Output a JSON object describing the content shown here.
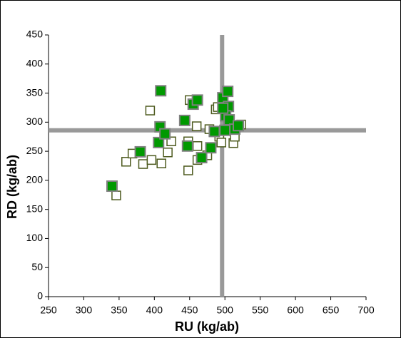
{
  "chart_data": {
    "type": "scatter",
    "x_label": "RU (kg/ab)",
    "y_label": "RD (kg/ab)",
    "xlim": [
      250,
      700
    ],
    "xticks": [
      250,
      300,
      350,
      400,
      450,
      500,
      550,
      600,
      650,
      700
    ],
    "ylim": [
      0,
      450
    ],
    "yticks": [
      0,
      50,
      100,
      150,
      200,
      250,
      300,
      350,
      400,
      450
    ],
    "reference_lines": {
      "x": 496,
      "y": 286,
      "color": "#999999"
    },
    "series": [
      {
        "color": "#4d5a1e",
        "marker": "hollow-square",
        "x": [
          346,
          360,
          369,
          384,
          396,
          410,
          394,
          419,
          424,
          448,
          448,
          461,
          460,
          461,
          475,
          478,
          487,
          492,
          495,
          512,
          514,
          523,
          450,
          490
        ],
        "values": [
          174,
          232,
          246,
          228,
          235,
          229,
          320,
          248,
          267,
          217,
          267,
          235,
          293,
          259,
          243,
          288,
          322,
          275,
          265,
          264,
          275,
          296,
          338,
          326
        ]
      },
      {
        "color": "#009900",
        "marker": "filled-square",
        "x": [
          340,
          380,
          409,
          408,
          406,
          415,
          443,
          447,
          455,
          461,
          467,
          480,
          485,
          497,
          504,
          505,
          501,
          500,
          506,
          514,
          519,
          497
        ],
        "values": [
          190,
          249,
          354,
          292,
          265,
          280,
          303,
          259,
          331,
          338,
          239,
          256,
          284,
          342,
          353,
          327,
          311,
          286,
          304,
          288,
          294,
          324
        ]
      }
    ]
  }
}
